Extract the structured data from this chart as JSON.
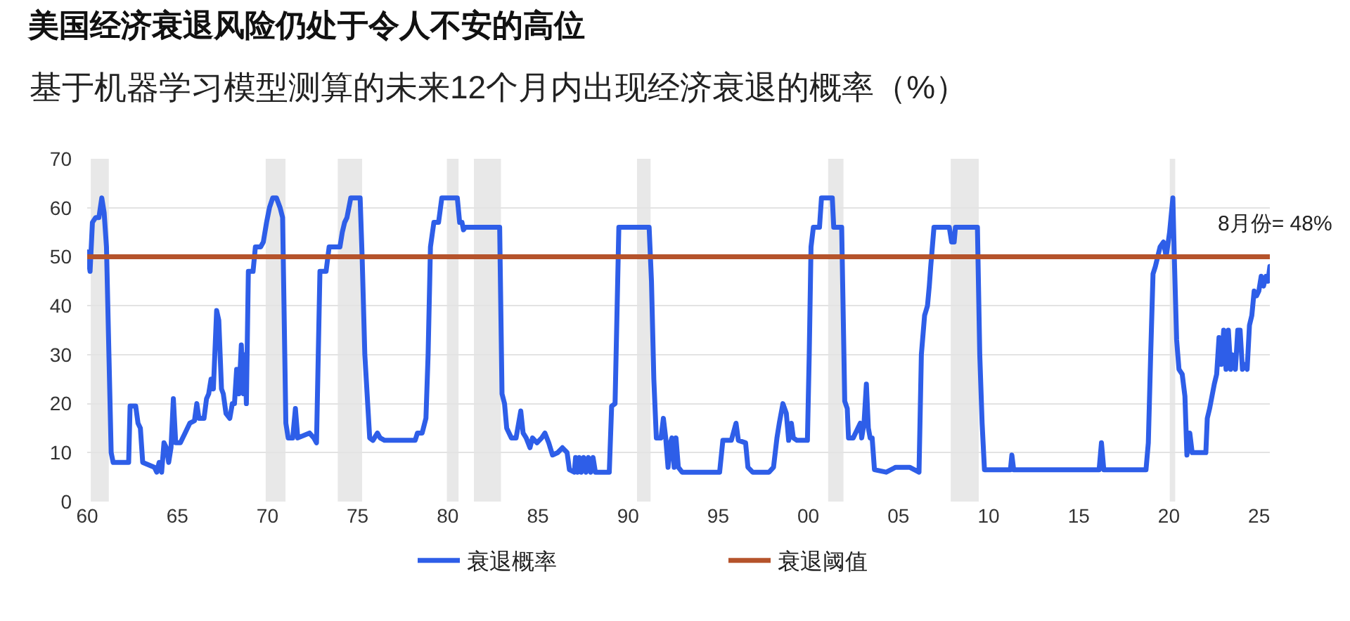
{
  "chart_data": {
    "type": "line",
    "title": "美国经济衰退风险仍处于令人不安的高位",
    "subtitle": "基于机器学习模型测算的未来12个月内出现经济衰退的概率（%）",
    "series": [
      {
        "name": "衰退概率",
        "color": "#2e5ee8",
        "x": [
          1960.0,
          1960.16,
          1960.29,
          1960.47,
          1960.65,
          1960.81,
          1960.94,
          1961.07,
          1961.33,
          1961.44,
          1961.91,
          1962.3,
          1962.38,
          1962.69,
          1962.82,
          1962.95,
          1963.08,
          1963.73,
          1963.86,
          1963.99,
          1964.13,
          1964.26,
          1964.39,
          1964.52,
          1964.65,
          1964.78,
          1964.91,
          1965.17,
          1965.43,
          1965.69,
          1965.95,
          1966.08,
          1966.2,
          1966.48,
          1966.62,
          1966.74,
          1966.87,
          1967.0,
          1967.18,
          1967.3,
          1967.45,
          1967.55,
          1967.7,
          1967.91,
          1968.05,
          1968.17,
          1968.29,
          1968.42,
          1968.55,
          1968.67,
          1968.75,
          1968.83,
          1968.94,
          1969.2,
          1969.33,
          1969.62,
          1969.77,
          1969.95,
          1970.11,
          1970.29,
          1970.5,
          1970.7,
          1970.84,
          1971.02,
          1971.15,
          1971.4,
          1971.55,
          1971.68,
          1972.33,
          1972.57,
          1972.72,
          1972.91,
          1973.25,
          1973.42,
          1974.02,
          1974.15,
          1974.28,
          1974.41,
          1974.62,
          1975.14,
          1975.25,
          1975.4,
          1975.67,
          1975.85,
          1976.1,
          1976.25,
          1976.5,
          1978.19,
          1978.32,
          1978.58,
          1978.79,
          1978.91,
          1979.04,
          1979.23,
          1979.49,
          1979.67,
          1980.53,
          1980.66,
          1980.79,
          1980.87,
          1980.97,
          1982.88,
          1983.01,
          1983.15,
          1983.27,
          1983.53,
          1983.79,
          1984.05,
          1984.18,
          1984.35,
          1984.56,
          1984.7,
          1984.95,
          1985.21,
          1985.39,
          1985.6,
          1985.81,
          1986.1,
          1986.36,
          1986.62,
          1986.75,
          1987.02,
          1987.09,
          1987.2,
          1987.3,
          1987.41,
          1987.54,
          1987.67,
          1987.8,
          1987.93,
          1988.06,
          1988.19,
          1988.96,
          1989.09,
          1989.28,
          1989.49,
          1991.17,
          1991.3,
          1991.43,
          1991.57,
          1991.83,
          1991.96,
          1992.09,
          1992.22,
          1992.35,
          1992.43,
          1992.56,
          1992.66,
          1992.79,
          1993.0,
          1995.08,
          1995.26,
          1995.73,
          1995.99,
          1996.12,
          1996.52,
          1996.65,
          1996.91,
          1997.82,
          1998.07,
          1998.26,
          1998.39,
          1998.59,
          1998.78,
          1998.91,
          1999.06,
          1999.17,
          1999.37,
          1999.95,
          2000.05,
          2000.15,
          2000.28,
          2000.62,
          2000.73,
          2001.33,
          2001.41,
          2001.85,
          2002.02,
          2002.16,
          2002.23,
          2002.49,
          2002.75,
          2002.88,
          2002.96,
          2003.09,
          2003.22,
          2003.33,
          2003.43,
          2003.54,
          2003.67,
          2004.32,
          2004.84,
          2005.62,
          2006.14,
          2006.27,
          2006.45,
          2006.61,
          2006.71,
          2006.79,
          2006.97,
          2007.82,
          2007.95,
          2008.09,
          2008.16,
          2009.38,
          2009.51,
          2009.64,
          2009.77,
          2011.21,
          2011.29,
          2011.39,
          2014.45,
          2016.13,
          2016.26,
          2016.39,
          2018.73,
          2018.86,
          2018.99,
          2019.12,
          2019.25,
          2019.38,
          2019.51,
          2019.7,
          2019.85,
          2020.04,
          2020.22,
          2020.3,
          2020.43,
          2020.56,
          2020.74,
          2020.89,
          2021.0,
          2021.16,
          2021.29,
          2021.47,
          2022.05,
          2022.13,
          2022.26,
          2022.52,
          2022.65,
          2022.78,
          2022.91,
          2023.04,
          2023.17,
          2023.3,
          2023.43,
          2023.51,
          2023.69,
          2023.82,
          2023.95,
          2024.08,
          2024.21,
          2024.34,
          2024.47,
          2024.6,
          2024.73,
          2024.86,
          2024.99,
          2025.12,
          2025.25,
          2025.38,
          2025.5,
          2025.6
        ],
        "values": [
          51,
          47,
          57,
          58,
          58,
          62,
          59,
          52,
          10,
          8,
          8,
          8,
          19.5,
          19.5,
          16,
          15,
          8,
          7,
          6,
          8,
          6,
          12,
          11,
          8,
          11,
          21,
          12,
          12,
          14,
          16,
          16.5,
          20,
          17,
          17,
          21,
          22,
          25,
          23,
          39,
          37,
          23,
          22,
          18,
          17,
          20,
          20,
          27,
          22,
          32,
          22,
          30,
          20,
          47,
          47,
          52,
          52,
          53,
          57,
          60,
          62,
          62,
          60,
          58,
          16,
          13,
          13,
          19,
          13,
          14,
          13,
          12,
          47,
          47,
          52,
          52,
          55,
          57,
          58,
          62,
          62,
          50,
          30,
          13,
          12.5,
          14,
          13,
          12.5,
          12.5,
          14,
          14,
          17,
          30,
          52,
          57,
          57,
          62,
          62,
          57,
          57,
          55.5,
          56,
          56,
          22,
          20,
          15,
          13,
          13,
          18.5,
          14,
          13,
          11,
          13,
          12,
          13,
          14,
          12,
          9.5,
          10,
          11,
          10,
          6.5,
          6,
          9,
          6,
          9,
          6,
          9,
          6,
          9,
          6,
          9,
          6,
          6,
          19.5,
          20,
          56,
          56,
          45,
          25,
          13,
          13,
          17,
          13,
          7,
          12,
          13,
          7,
          13,
          7,
          6,
          6,
          12.5,
          12.5,
          16,
          12.5,
          12,
          7,
          6,
          6,
          7,
          13,
          16,
          20,
          18,
          12.5,
          16,
          13,
          12.5,
          12.5,
          30,
          52,
          56,
          56,
          62,
          62,
          56,
          56,
          20.5,
          19,
          13,
          13,
          15,
          16,
          13,
          16,
          24,
          15,
          13,
          13,
          6.5,
          6,
          7,
          7,
          6,
          30,
          38,
          40,
          44,
          48,
          56,
          56,
          53,
          53,
          56,
          56,
          30,
          16,
          6.5,
          6.5,
          9.5,
          6.5,
          6.5,
          6.5,
          12,
          6.5,
          6.5,
          12,
          30,
          46.5,
          48,
          50,
          52,
          53,
          50,
          55,
          62,
          50,
          33,
          27,
          26,
          21.5,
          9.5,
          14,
          10,
          10,
          10,
          17,
          19,
          24,
          26,
          33.5,
          28,
          35,
          27,
          35,
          27,
          30,
          27,
          35,
          35,
          27,
          28,
          27,
          36,
          38,
          43,
          42,
          43,
          46,
          44,
          46,
          45,
          48
        ]
      },
      {
        "name": "衰退阈值",
        "color": "#b5532b",
        "x": [
          1960,
          2025.6
        ],
        "values": [
          50,
          50
        ]
      }
    ],
    "xlim": [
      1960,
      2025.6
    ],
    "xticks": [
      {
        "value": 1960,
        "label": "60"
      },
      {
        "value": 1965,
        "label": "65"
      },
      {
        "value": 1970,
        "label": "70"
      },
      {
        "value": 1975,
        "label": "75"
      },
      {
        "value": 1980,
        "label": "80"
      },
      {
        "value": 1985,
        "label": "85"
      },
      {
        "value": 1990,
        "label": "90"
      },
      {
        "value": 1995,
        "label": "95"
      },
      {
        "value": 2000,
        "label": "00"
      },
      {
        "value": 2005,
        "label": "05"
      },
      {
        "value": 2010,
        "label": "10"
      },
      {
        "value": 2015,
        "label": "15"
      },
      {
        "value": 2020,
        "label": "20"
      },
      {
        "value": 2025,
        "label": "25"
      }
    ],
    "ylim": [
      0,
      70
    ],
    "yticks": [
      0,
      10,
      20,
      30,
      40,
      50,
      60,
      70
    ],
    "grid": "y",
    "legend": "bottom",
    "bands": [
      {
        "axis": "x",
        "from": 1960.2,
        "to": 1961.2,
        "color": "#e8e8e8"
      },
      {
        "axis": "x",
        "from": 1969.9,
        "to": 1971.0,
        "color": "#e8e8e8"
      },
      {
        "axis": "x",
        "from": 1973.9,
        "to": 1975.25,
        "color": "#e8e8e8"
      },
      {
        "axis": "x",
        "from": 1979.95,
        "to": 1980.6,
        "color": "#e8e8e8"
      },
      {
        "axis": "x",
        "from": 1981.45,
        "to": 1982.95,
        "color": "#e8e8e8"
      },
      {
        "axis": "x",
        "from": 1990.5,
        "to": 1991.25,
        "color": "#e8e8e8"
      },
      {
        "axis": "x",
        "from": 2001.1,
        "to": 2001.95,
        "color": "#e8e8e8"
      },
      {
        "axis": "x",
        "from": 2007.9,
        "to": 2009.45,
        "color": "#e8e8e8"
      },
      {
        "axis": "x",
        "from": 2020.05,
        "to": 2020.35,
        "color": "#e8e8e8"
      }
    ],
    "annotations": [
      {
        "text": "8月份= 48%",
        "x": 2025.6,
        "y": 48
      }
    ]
  }
}
